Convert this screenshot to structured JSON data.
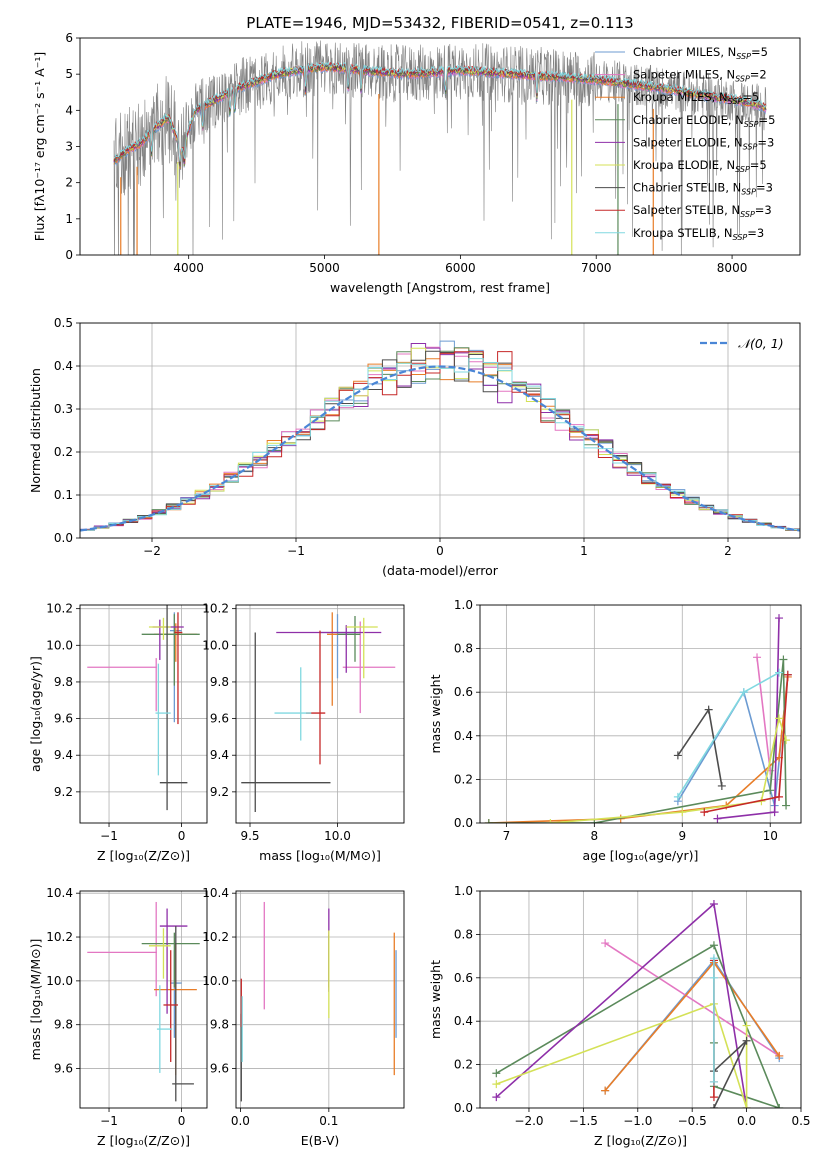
{
  "figure_title": "PLATE=1946, MJD=53432, FIBERID=0541, z=0.113",
  "colors": {
    "grid": "#b0b0b0",
    "observed": "#808080",
    "gauss": "#4a86d6",
    "models": [
      "#6c9bd2",
      "#e377c2",
      "#e87d28",
      "#5b8a5b",
      "#8e2fa8",
      "#d4e157",
      "#4d4d4d",
      "#c62828",
      "#80d8e0"
    ]
  },
  "chart_data": [
    {
      "panel": "spectrum",
      "type": "line",
      "xlabel": "wavelength [Angstrom, rest frame]",
      "ylabel": "Flux [fλ10⁻¹⁷ erg cm⁻² s⁻¹ A⁻¹]",
      "xlim": [
        3200,
        8500
      ],
      "ylim": [
        0,
        6
      ],
      "xticks": [
        "4000",
        "5000",
        "6000",
        "7000",
        "8000"
      ],
      "yticks": [
        "0",
        "1",
        "2",
        "3",
        "4",
        "5",
        "6"
      ],
      "grid": false,
      "legend_position": "top-right",
      "legend": [
        {
          "label": "Chabrier MILES, N",
          "sub": "SSP",
          "tail": "=5"
        },
        {
          "label": "Salpeter MILES, N",
          "sub": "SSP",
          "tail": "=2"
        },
        {
          "label": "Kroupa MILES, N",
          "sub": "SSP",
          "tail": "=5"
        },
        {
          "label": "Chabrier ELODIE, N",
          "sub": "SSP",
          "tail": "=5"
        },
        {
          "label": "Salpeter ELODIE, N",
          "sub": "SSP",
          "tail": "=3"
        },
        {
          "label": "Kroupa ELODIE, N",
          "sub": "SSP",
          "tail": "=5"
        },
        {
          "label": "Chabrier STELIB, N",
          "sub": "SSP",
          "tail": "=3"
        },
        {
          "label": "Salpeter STELIB, N",
          "sub": "SSP",
          "tail": "=3"
        },
        {
          "label": "Kroupa STELIB, N",
          "sub": "SSP",
          "tail": "=3"
        }
      ],
      "model_continuum": {
        "x": [
          3450,
          3550,
          3650,
          3750,
          3850,
          3950,
          4050,
          4200,
          4350,
          4500,
          4650,
          4800,
          5000,
          5200,
          5400,
          5600,
          5800,
          6000,
          6200,
          6400,
          6600,
          6800,
          7000,
          7200,
          7400,
          7600,
          7800,
          8000,
          8200,
          8250
        ],
        "y": [
          2.6,
          2.9,
          3.1,
          3.5,
          3.8,
          2.9,
          4.0,
          4.3,
          4.6,
          4.8,
          5.0,
          5.1,
          5.2,
          5.15,
          5.05,
          5.0,
          5.05,
          5.1,
          5.05,
          5.0,
          4.95,
          4.9,
          4.85,
          4.75,
          4.65,
          4.55,
          4.4,
          4.3,
          4.15,
          4.05
        ]
      }
    },
    {
      "panel": "residuals",
      "type": "histogram",
      "xlabel": "(data-model)/error",
      "ylabel": "Normed distribution",
      "xlim": [
        -2.5,
        2.5
      ],
      "ylim": [
        0,
        0.5
      ],
      "xticks": [
        "−2",
        "−1",
        "0",
        "1",
        "2"
      ],
      "yticks": [
        "0.0",
        "0.1",
        "0.2",
        "0.3",
        "0.4",
        "0.5"
      ],
      "grid": true,
      "legend_label": "𝒩(0, 1)",
      "bin_width": 0.1,
      "gaussian": {
        "mean": 0,
        "sigma": 1
      }
    },
    {
      "panel": "age-vs-Z",
      "type": "errorbar",
      "xlabel": "Z [log₁₀(Z/Z⊙)]",
      "ylabel": "age  [log₁₀(age/yr)]",
      "xlim": [
        -1.4,
        0.35
      ],
      "ylim": [
        9.03,
        10.22
      ],
      "xticks": [
        "−1",
        "0"
      ],
      "yticks": [
        "9.2",
        "9.4",
        "9.6",
        "9.8",
        "10.0",
        "10.2"
      ],
      "grid": true,
      "points": [
        {
          "x": -0.1,
          "xe": [
            0.06,
            0.1
          ],
          "y": 10.08,
          "ye": [
            0.5,
            0.1
          ]
        },
        {
          "x": -0.35,
          "xe": [
            0.95,
            0.01
          ],
          "y": 9.88,
          "ye": [
            0.24,
            0.05
          ]
        },
        {
          "x": -0.08,
          "xe": [
            0.3,
            0.29
          ],
          "y": 10.06,
          "ye": [
            0.15,
            0.06
          ]
        },
        {
          "x": -0.1,
          "xe": [
            0.45,
            0.35
          ],
          "y": 10.06,
          "ye": [
            0.28,
            0.11
          ]
        },
        {
          "x": -0.3,
          "xe": [
            0.1,
            0.33
          ],
          "y": 10.1,
          "ye": [
            0.18,
            0.04
          ]
        },
        {
          "x": -0.25,
          "xe": [
            0.2,
            0.1
          ],
          "y": 10.1,
          "ye": [
            0.07,
            0.05
          ]
        },
        {
          "x": -0.2,
          "xe": [
            0.1,
            0.28
          ],
          "y": 9.25,
          "ye": [
            0.15,
            0.97
          ]
        },
        {
          "x": -0.05,
          "xe": [
            0.05,
            0.06
          ],
          "y": 10.07,
          "ye": [
            0.5,
            0.11
          ]
        },
        {
          "x": -0.32,
          "xe": [
            0.04,
            0.17
          ],
          "y": 9.63,
          "ye": [
            0.34,
            0.27
          ]
        }
      ]
    },
    {
      "panel": "age-vs-mass",
      "type": "errorbar",
      "xlabel": "mass [log₁₀(M/M⊙)]",
      "xlim": [
        9.42,
        10.38
      ],
      "ylim": [
        9.03,
        10.22
      ],
      "xticks": [
        "9.5",
        "10.0"
      ],
      "yticks": [
        "9.2",
        "9.4",
        "9.6",
        "9.8",
        "10.0",
        "10.2"
      ],
      "grid": true,
      "points": [
        {
          "x": 10.0,
          "xe": [
            0.1,
            0.1
          ],
          "y": 10.07,
          "ye": [
            0.25,
            0.1
          ]
        },
        {
          "x": 10.13,
          "xe": [
            0.1,
            0.2
          ],
          "y": 9.88,
          "ye": [
            0.25,
            0.25
          ]
        },
        {
          "x": 9.97,
          "xe": [
            0.03,
            0.03
          ],
          "y": 10.06,
          "ye": [
            0.39,
            0.12
          ]
        },
        {
          "x": 10.1,
          "xe": [
            0.1,
            0.03
          ],
          "y": 10.06,
          "ye": [
            0.15,
            0.1
          ]
        },
        {
          "x": 10.05,
          "xe": [
            0.4,
            0.2
          ],
          "y": 10.07,
          "ye": [
            0.22,
            0.04
          ]
        },
        {
          "x": 10.15,
          "xe": [
            0.1,
            0.08
          ],
          "y": 10.1,
          "ye": [
            0.28,
            0.05
          ]
        },
        {
          "x": 9.53,
          "xe": [
            0.08,
            0.43
          ],
          "y": 9.25,
          "ye": [
            0.16,
            0.82
          ]
        },
        {
          "x": 9.9,
          "xe": [
            0.08,
            0.03
          ],
          "y": 9.63,
          "ye": [
            0.28,
            0.45
          ]
        },
        {
          "x": 9.79,
          "xe": [
            0.15,
            0.06
          ],
          "y": 9.63,
          "ye": [
            0.15,
            0.25
          ]
        }
      ]
    },
    {
      "panel": "weight-vs-age",
      "type": "line",
      "xlabel": "age  [log₁₀(age/yr)]",
      "ylabel": "mass weight",
      "xlim": [
        6.7,
        10.35
      ],
      "ylim": [
        0,
        1
      ],
      "xticks": [
        "7",
        "8",
        "9",
        "10"
      ],
      "yticks": [
        "0.0",
        "0.2",
        "0.4",
        "0.6",
        "0.8",
        "1.0"
      ],
      "grid": true,
      "series": [
        {
          "x": [
            8.95,
            9.7,
            10.05,
            10.2
          ],
          "y": [
            0.1,
            0.6,
            0.08,
            0.68
          ]
        },
        {
          "x": [
            9.85,
            10.0
          ],
          "y": [
            0.76,
            0.24
          ]
        },
        {
          "x": [
            6.8,
            8.3,
            9.5,
            10.1,
            10.2
          ],
          "y": [
            0.0,
            0.02,
            0.08,
            0.3,
            0.67
          ]
        },
        {
          "x": [
            6.8,
            8.0,
            10.0,
            10.15,
            10.18
          ],
          "y": [
            0.0,
            0.0,
            0.15,
            0.75,
            0.08
          ]
        },
        {
          "x": [
            9.4,
            10.05,
            10.1
          ],
          "y": [
            0.02,
            0.05,
            0.94
          ]
        },
        {
          "x": [
            7.5,
            9.0,
            9.9,
            10.1,
            10.18
          ],
          "y": [
            0.0,
            0.05,
            0.1,
            0.48,
            0.38
          ]
        },
        {
          "x": [
            8.95,
            9.3,
            9.45
          ],
          "y": [
            0.31,
            0.52,
            0.17
          ]
        },
        {
          "x": [
            9.25,
            10.1,
            10.2
          ],
          "y": [
            0.05,
            0.12,
            0.68
          ]
        },
        {
          "x": [
            8.95,
            9.7,
            10.1
          ],
          "y": [
            0.12,
            0.6,
            0.69
          ]
        }
      ]
    },
    {
      "panel": "mass-vs-Z",
      "type": "errorbar",
      "xlabel": "Z [log₁₀(Z/Z⊙)]",
      "ylabel": "mass [log₁₀(M/M⊙)]",
      "xlim": [
        -1.4,
        0.35
      ],
      "ylim": [
        9.42,
        10.41
      ],
      "xticks": [
        "−1",
        "0"
      ],
      "yticks": [
        "9.6",
        "9.8",
        "10.0",
        "10.2",
        "10.4"
      ],
      "grid": true,
      "points": [
        {
          "x": -0.1,
          "xe": [
            0.06,
            0.1
          ],
          "y": 9.99,
          "ye": [
            0.25,
            0.15
          ]
        },
        {
          "x": -0.35,
          "xe": [
            0.95,
            0.01
          ],
          "y": 10.13,
          "ye": [
            0.2,
            0.23
          ]
        },
        {
          "x": -0.08,
          "xe": [
            0.3,
            0.29
          ],
          "y": 9.96,
          "ye": [
            0.39,
            0.21
          ]
        },
        {
          "x": -0.1,
          "xe": [
            0.45,
            0.35
          ],
          "y": 10.17,
          "ye": [
            0.2,
            0.05
          ]
        },
        {
          "x": -0.2,
          "xe": [
            0.1,
            0.28
          ],
          "y": 10.25,
          "ye": [
            0.4,
            0.08
          ]
        },
        {
          "x": -0.25,
          "xe": [
            0.2,
            0.1
          ],
          "y": 10.16,
          "ye": [
            0.15,
            0.08
          ]
        },
        {
          "x": -0.08,
          "xe": [
            0.05,
            0.25
          ],
          "y": 9.53,
          "ye": [
            0.08,
            0.72
          ]
        },
        {
          "x": -0.15,
          "xe": [
            0.1,
            0.1
          ],
          "y": 9.89,
          "ye": [
            0.26,
            0.25
          ]
        },
        {
          "x": -0.3,
          "xe": [
            0.04,
            0.17
          ],
          "y": 9.78,
          "ye": [
            0.2,
            0.2
          ]
        }
      ]
    },
    {
      "panel": "mass-vs-ebv",
      "type": "errorbar",
      "xlabel": "E(B-V)",
      "xlim": [
        -0.005,
        0.185
      ],
      "ylim": [
        9.42,
        10.41
      ],
      "xticks": [
        "0.0",
        "0.1"
      ],
      "yticks": [
        "9.6",
        "9.8",
        "10.0",
        "10.2",
        "10.4"
      ],
      "grid": true,
      "points": [
        {
          "x": 0.176,
          "y": 9.99,
          "ye": [
            0.25,
            0.15
          ]
        },
        {
          "x": 0.027,
          "y": 10.13,
          "ye": [
            0.26,
            0.23
          ]
        },
        {
          "x": 0.174,
          "y": 9.96,
          "ye": [
            0.39,
            0.26
          ]
        },
        {
          "x": 0.1,
          "y": 10.17,
          "ye": [
            0.2,
            0.04
          ]
        },
        {
          "x": 0.1,
          "y": 10.25,
          "ye": [
            0.3,
            0.08
          ]
        },
        {
          "x": 0.1,
          "y": 10.16,
          "ye": [
            0.33,
            0.07
          ]
        },
        {
          "x": 0.001,
          "y": 9.53,
          "ye": [
            0.08,
            0.32
          ]
        },
        {
          "x": 0.001,
          "y": 9.89,
          "ye": [
            0.1,
            0.12
          ]
        },
        {
          "x": 0.002,
          "y": 9.78,
          "ye": [
            0.15,
            0.15
          ]
        }
      ]
    },
    {
      "panel": "weight-vs-Z",
      "type": "line",
      "xlabel": "Z [log₁₀(Z/Z⊙)]",
      "ylabel": "mass weight",
      "xlim": [
        -2.45,
        0.5
      ],
      "ylim": [
        0,
        1
      ],
      "xticks": [
        "−2.0",
        "−1.5",
        "−1.0",
        "−0.5",
        "0.0",
        "0.5"
      ],
      "yticks": [
        "0.0",
        "0.2",
        "0.4",
        "0.6",
        "0.8",
        "1.0"
      ],
      "grid": true,
      "series": [
        {
          "x": [
            -1.3,
            -0.3,
            0.3
          ],
          "y": [
            0.08,
            0.68,
            0.23
          ]
        },
        {
          "x": [
            -1.3,
            0.3
          ],
          "y": [
            0.76,
            0.24
          ]
        },
        {
          "x": [
            -1.3,
            -0.3,
            0.3
          ],
          "y": [
            0.08,
            0.67,
            0.24
          ]
        },
        {
          "x": [
            -2.3,
            -0.3,
            0.3,
            -0.3,
            -0.3
          ],
          "y": [
            0.16,
            0.75,
            0.0,
            0.1,
            0.3
          ]
        },
        {
          "x": [
            -2.3,
            -0.3,
            0.0
          ],
          "y": [
            0.05,
            0.94,
            0.0
          ]
        },
        {
          "x": [
            -2.3,
            -0.3,
            0.0,
            0.0
          ],
          "y": [
            0.11,
            0.48,
            0.0,
            0.38
          ]
        },
        {
          "x": [
            -0.3,
            0.0,
            -0.3
          ],
          "y": [
            0.17,
            0.31,
            0.0
          ]
        },
        {
          "x": [
            -0.3,
            -0.3,
            -0.3
          ],
          "y": [
            0.05,
            0.12,
            0.68
          ]
        },
        {
          "x": [
            -0.3,
            -0.3,
            -0.3
          ],
          "y": [
            0.12,
            0.6,
            0.69
          ]
        }
      ]
    }
  ]
}
